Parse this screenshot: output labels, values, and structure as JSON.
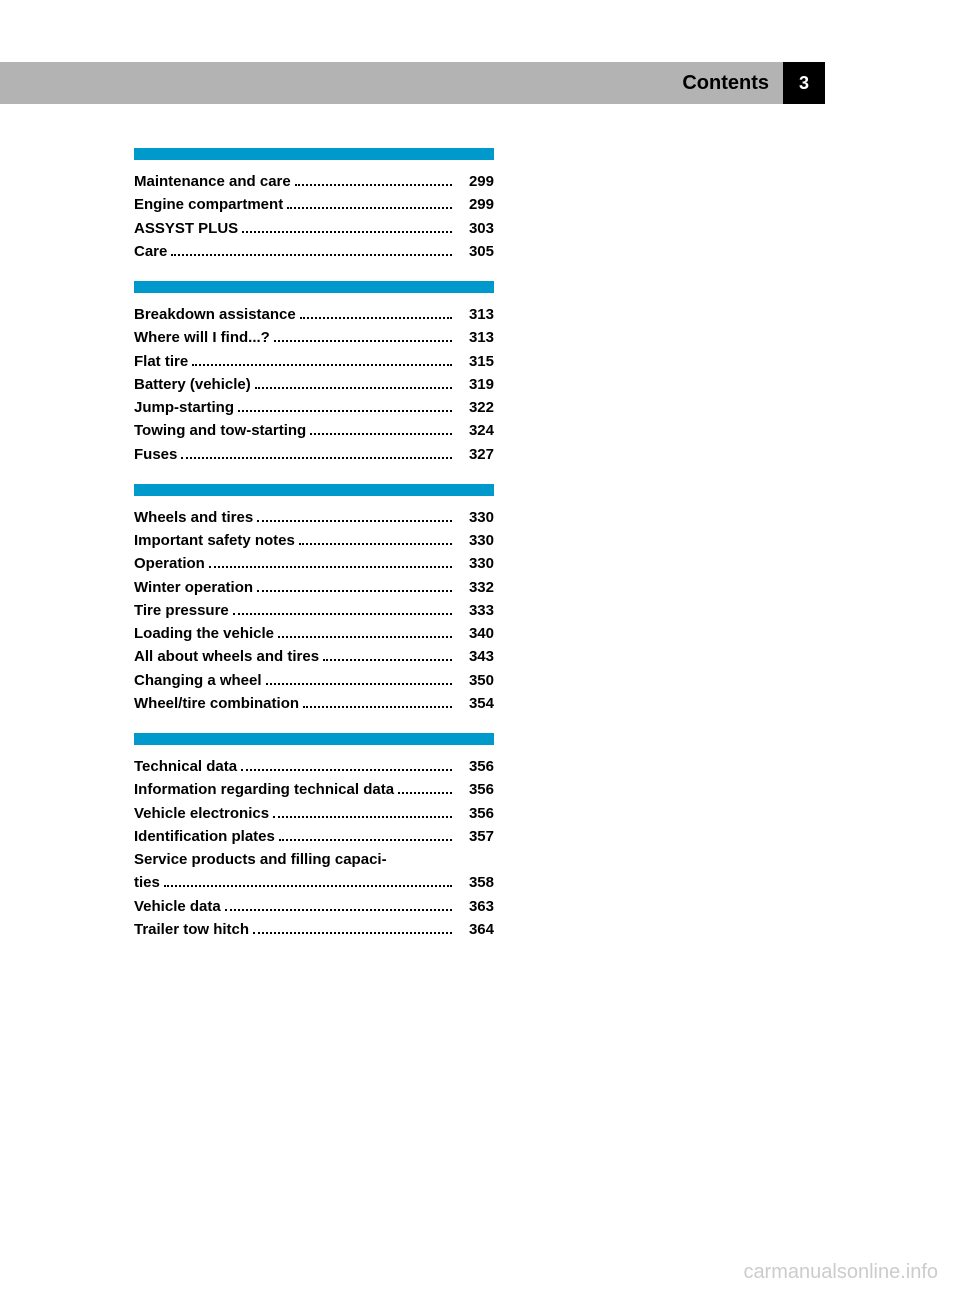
{
  "header": {
    "title": "Contents",
    "page": "3"
  },
  "sections": [
    {
      "items": [
        {
          "label": "Maintenance and care",
          "page": "299"
        },
        {
          "label": "Engine compartment",
          "page": "299"
        },
        {
          "label": "ASSYST PLUS",
          "page": "303"
        },
        {
          "label": "Care",
          "page": "305"
        }
      ]
    },
    {
      "items": [
        {
          "label": "Breakdown assistance",
          "page": "313"
        },
        {
          "label": "Where will I find...?",
          "page": "313"
        },
        {
          "label": "Flat tire",
          "page": "315"
        },
        {
          "label": "Battery (vehicle)",
          "page": "319"
        },
        {
          "label": "Jump-starting",
          "page": "322"
        },
        {
          "label": "Towing and tow-starting",
          "page": "324"
        },
        {
          "label": "Fuses",
          "page": "327"
        }
      ]
    },
    {
      "items": [
        {
          "label": "Wheels and tires",
          "page": "330"
        },
        {
          "label": "Important safety notes",
          "page": "330"
        },
        {
          "label": "Operation",
          "page": "330"
        },
        {
          "label": "Winter operation",
          "page": "332"
        },
        {
          "label": "Tire pressure",
          "page": "333"
        },
        {
          "label": "Loading the vehicle",
          "page": "340"
        },
        {
          "label": "All about wheels and tires",
          "page": "343"
        },
        {
          "label": "Changing a wheel",
          "page": "350"
        },
        {
          "label": "Wheel/tire combination",
          "page": "354"
        }
      ]
    },
    {
      "items": [
        {
          "label": "Technical data",
          "page": "356"
        },
        {
          "label": "Information regarding technical data",
          "page": "356"
        },
        {
          "label": "Vehicle electronics",
          "page": "356"
        },
        {
          "label": "Identification plates",
          "page": "357"
        },
        {
          "label": "Service products and filling capacities",
          "page": "358",
          "wrap": true
        },
        {
          "label": "Vehicle data",
          "page": "363"
        },
        {
          "label": "Trailer tow hitch",
          "page": "364"
        }
      ]
    }
  ],
  "watermark": "carmanualsonline.info",
  "colors": {
    "section_bar": "#0099cc",
    "header_bg": "#b3b3b3",
    "pagebox_bg": "#000000",
    "pagebox_fg": "#ffffff",
    "watermark": "#cccccc"
  }
}
